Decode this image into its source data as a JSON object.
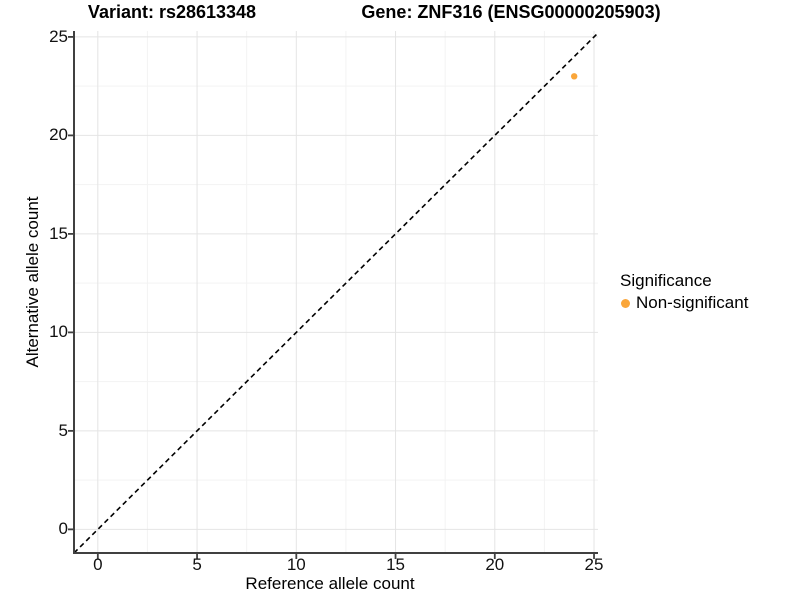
{
  "chart_data": {
    "type": "scatter",
    "title_left": "Variant: rs28613348",
    "title_right": "Gene: ZNF316 (ENSG00000205903)",
    "xlabel": "Reference allele count",
    "ylabel": "Alternative allele count",
    "xlim": [
      -1.2,
      25.2
    ],
    "ylim": [
      -1.2,
      25.3
    ],
    "xticks": [
      0,
      5,
      10,
      15,
      20,
      25
    ],
    "yticks": [
      0,
      5,
      10,
      15,
      20,
      25
    ],
    "grid": true,
    "minor_grid": true,
    "points": [
      {
        "x": 24,
        "y": 23,
        "series": "Non-significant",
        "color": "#FAA63A"
      }
    ],
    "identity_line": {
      "style": "dashed",
      "color": "#000000",
      "slope": 1,
      "intercept": 0
    },
    "legend": {
      "title": "Significance",
      "position": "right",
      "items": [
        {
          "label": "Non-significant",
          "color": "#FAA63A"
        }
      ]
    },
    "colors": {
      "background": "#FFFFFF",
      "grid_major": "#E4E4E4",
      "grid_minor": "#F3F3F3",
      "axis": "#404040",
      "text": "#000000"
    }
  }
}
